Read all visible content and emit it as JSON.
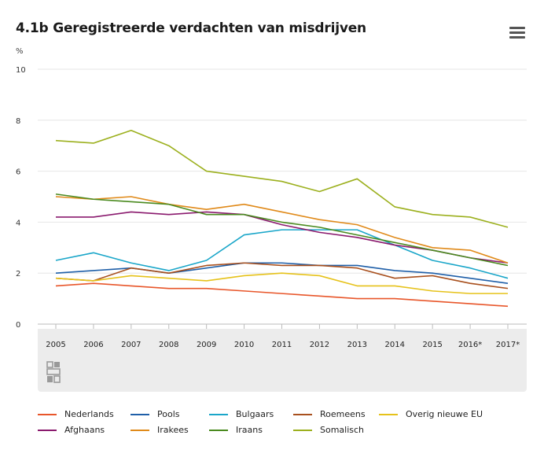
{
  "title": "4.1b Geregistreerde verdachten van misdrijven",
  "menu_icon": "hamburger-menu-icon",
  "logo_icon": "cbs-logo-icon",
  "chart_data": {
    "type": "line",
    "title": "4.1b Geregistreerde verdachten van misdrijven",
    "ylabel": "%",
    "xlabel": "",
    "ylim": [
      0,
      10
    ],
    "yticks": [
      0,
      2,
      4,
      6,
      8,
      10
    ],
    "categories": [
      "2005",
      "2006",
      "2007",
      "2008",
      "2009",
      "2010",
      "2011",
      "2012",
      "2013",
      "2014",
      "2015",
      "2016*",
      "2017*"
    ],
    "grid": true,
    "legend_position": "bottom",
    "series": [
      {
        "name": "Nederlands",
        "color": "#e8562a",
        "values": [
          1.5,
          1.6,
          1.5,
          1.4,
          1.4,
          1.3,
          1.2,
          1.1,
          1.0,
          1.0,
          0.9,
          0.8,
          0.7
        ]
      },
      {
        "name": "Pools",
        "color": "#1f5fa8",
        "values": [
          2.0,
          2.1,
          2.2,
          2.0,
          2.2,
          2.4,
          2.4,
          2.3,
          2.3,
          2.1,
          2.0,
          1.8,
          1.6
        ]
      },
      {
        "name": "Bulgaars",
        "color": "#1aa6c9",
        "values": [
          2.5,
          2.8,
          2.4,
          2.1,
          2.5,
          3.5,
          3.7,
          3.7,
          3.7,
          3.1,
          2.5,
          2.2,
          1.8
        ]
      },
      {
        "name": "Roemeens",
        "color": "#a8501e",
        "values": [
          1.8,
          1.7,
          2.2,
          2.0,
          2.3,
          2.4,
          2.3,
          2.3,
          2.2,
          1.8,
          1.9,
          1.6,
          1.4
        ]
      },
      {
        "name": "Overig nieuwe EU",
        "color": "#e6c21a",
        "values": [
          1.8,
          1.7,
          1.9,
          1.8,
          1.7,
          1.9,
          2.0,
          1.9,
          1.5,
          1.5,
          1.3,
          1.2,
          1.2
        ]
      },
      {
        "name": "Afghaans",
        "color": "#8a1a6e",
        "values": [
          4.2,
          4.2,
          4.4,
          4.3,
          4.4,
          4.3,
          3.9,
          3.6,
          3.4,
          3.1,
          2.9,
          2.6,
          2.4
        ]
      },
      {
        "name": "Irakees",
        "color": "#e08a1a",
        "values": [
          5.0,
          4.9,
          5.0,
          4.7,
          4.5,
          4.7,
          4.4,
          4.1,
          3.9,
          3.4,
          3.0,
          2.9,
          2.4
        ]
      },
      {
        "name": "Iraans",
        "color": "#4a8a1f",
        "values": [
          5.1,
          4.9,
          4.8,
          4.7,
          4.3,
          4.3,
          4.0,
          3.8,
          3.5,
          3.2,
          2.9,
          2.6,
          2.3
        ]
      },
      {
        "name": "Somalisch",
        "color": "#9cb01e",
        "values": [
          7.2,
          7.1,
          7.6,
          7.0,
          6.0,
          5.8,
          5.6,
          5.2,
          5.7,
          4.6,
          4.3,
          4.2,
          3.8
        ]
      }
    ]
  }
}
